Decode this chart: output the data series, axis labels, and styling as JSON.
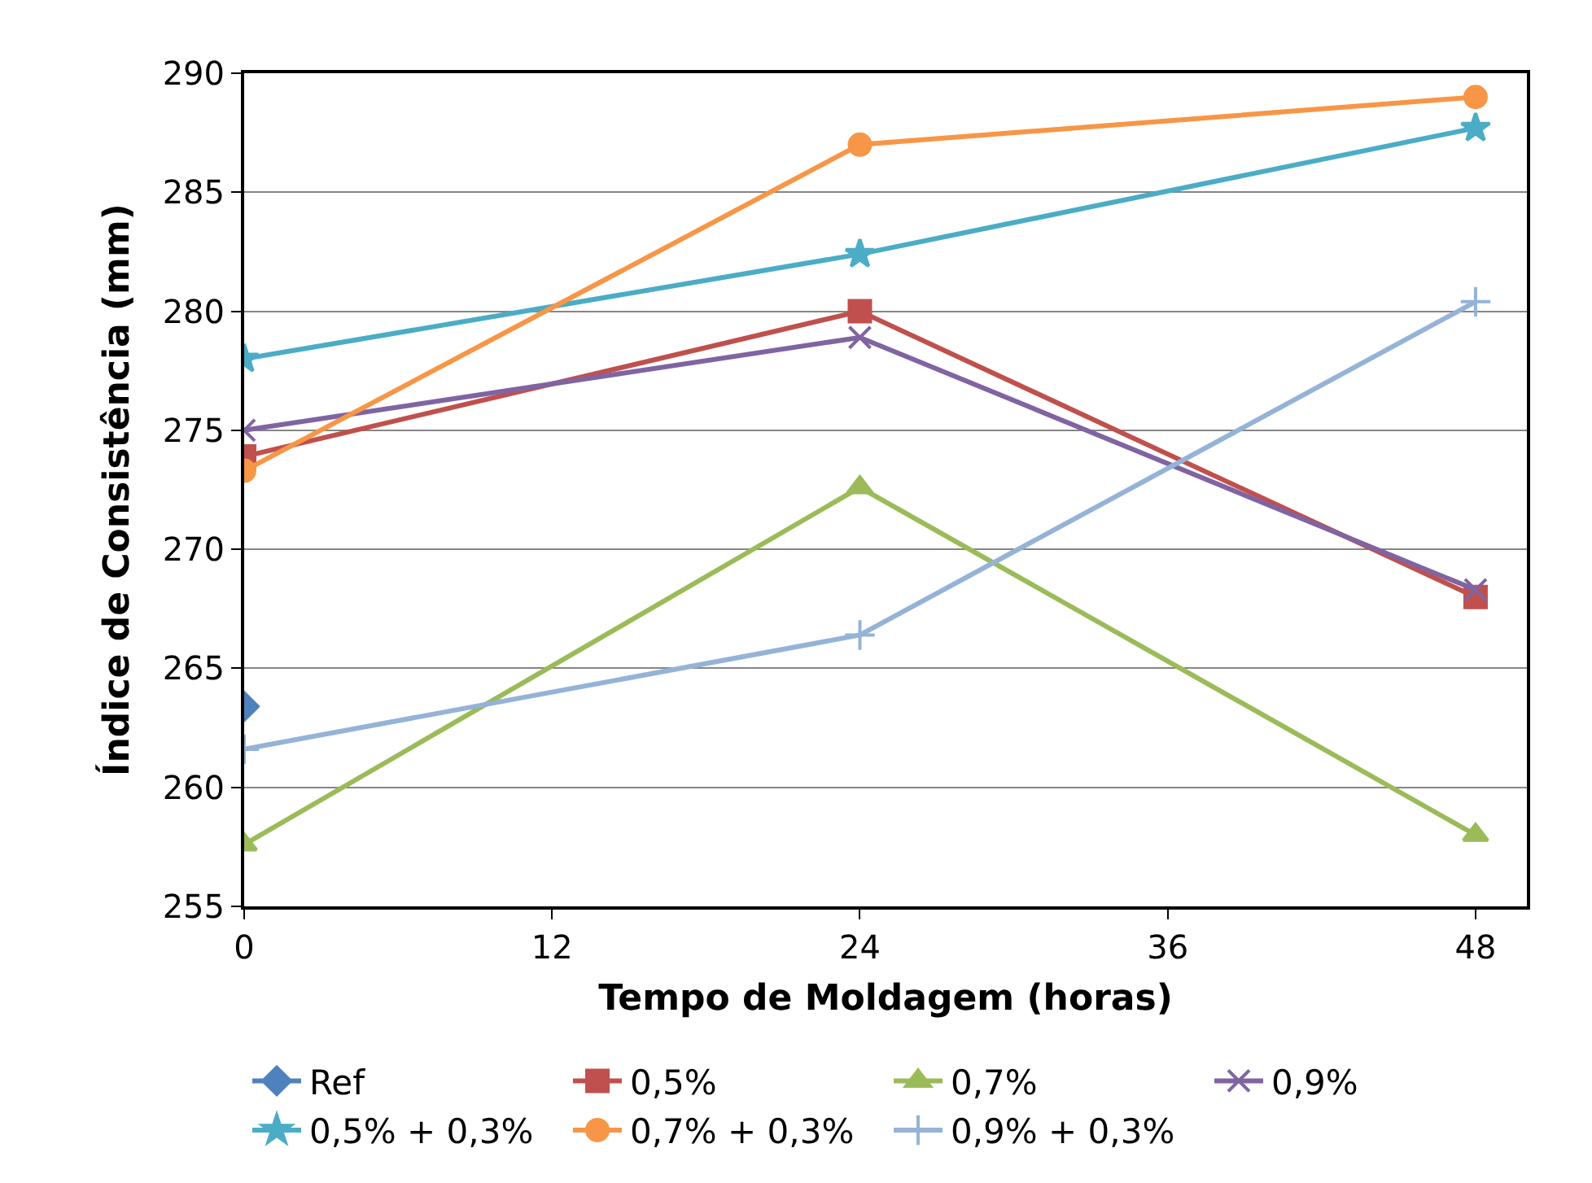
{
  "chart_data": {
    "type": "line",
    "xlabel": "Tempo de Moldagem (horas)",
    "ylabel": "Índice de Consistência (mm)",
    "x": [
      0,
      24,
      48
    ],
    "xlim": [
      0,
      50
    ],
    "xticks": [
      0,
      12,
      24,
      36,
      48
    ],
    "ylim": [
      255,
      290
    ],
    "yticks": [
      255,
      260,
      265,
      270,
      275,
      280,
      285,
      290
    ],
    "grid": "y",
    "legend": "bottom",
    "line_style": "solid",
    "series": [
      {
        "name": "Ref",
        "color": "#4f81bd",
        "marker": "diamond",
        "values": [
          263.4,
          null,
          null
        ]
      },
      {
        "name": "0,5%",
        "color": "#c0504d",
        "marker": "square",
        "values": [
          273.9,
          280,
          268
        ]
      },
      {
        "name": "0,7%",
        "color": "#9bbb59",
        "marker": "triangle",
        "values": [
          257.6,
          272.6,
          258
        ]
      },
      {
        "name": "0,9%",
        "color": "#8064a2",
        "marker": "cross",
        "values": [
          275,
          278.9,
          268.3
        ]
      },
      {
        "name": "0,5% + 0,3%",
        "color": "#4bacc6",
        "marker": "star",
        "values": [
          278,
          282.4,
          287.7
        ]
      },
      {
        "name": "0,7% + 0,3%",
        "color": "#f79646",
        "marker": "circle",
        "values": [
          273.3,
          287,
          289
        ]
      },
      {
        "name": "0,9% + 0,3%",
        "color": "#95b3d7",
        "marker": "plus",
        "values": [
          261.6,
          266.4,
          280.4
        ]
      }
    ]
  }
}
